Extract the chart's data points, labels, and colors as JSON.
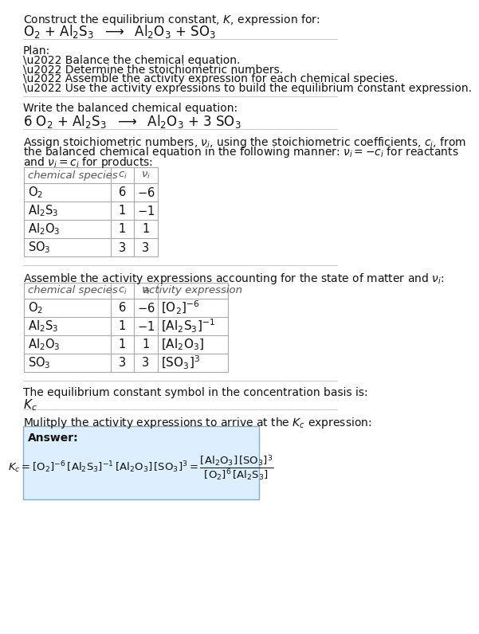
{
  "bg_color": "#ffffff",
  "table_border_color": "#aaaaaa",
  "answer_box_facecolor": "#ddeeff",
  "answer_box_edgecolor": "#88aacc",
  "text_color": "#111111",
  "gray_text": "#555555",
  "section_line_color": "#cccccc",
  "title_text": "Construct the equilibrium constant, $K$, expression for:",
  "rxn_unbalanced": "O$_2$ + Al$_2$S$_3$  $\\longrightarrow$  Al$_2$O$_3$ + SO$_3$",
  "plan_header": "Plan:",
  "plan_items": [
    "\\u2022 Balance the chemical equation.",
    "\\u2022 Determine the stoichiometric numbers.",
    "\\u2022 Assemble the activity expression for each chemical species.",
    "\\u2022 Use the activity expressions to build the equilibrium constant expression."
  ],
  "balanced_header": "Write the balanced chemical equation:",
  "rxn_balanced": "6 O$_2$ + Al$_2$S$_3$  $\\longrightarrow$  Al$_2$O$_3$ + 3 SO$_3$",
  "assign_text_lines": [
    "Assign stoichiometric numbers, $\\nu_i$, using the stoichiometric coefficients, $c_i$, from",
    "the balanced chemical equation in the following manner: $\\nu_i = -c_i$ for reactants",
    "and $\\nu_i = c_i$ for products:"
  ],
  "t1_headers": [
    "chemical species",
    "$c_i$",
    "$\\nu_i$"
  ],
  "t1_rows": [
    [
      "O$_2$",
      "6",
      "$-6$"
    ],
    [
      "Al$_2$S$_3$",
      "1",
      "$-1$"
    ],
    [
      "Al$_2$O$_3$",
      "1",
      "1"
    ],
    [
      "SO$_3$",
      "3",
      "3"
    ]
  ],
  "assemble_text": "Assemble the activity expressions accounting for the state of matter and $\\nu_i$:",
  "t2_headers": [
    "chemical species",
    "$c_i$",
    "$\\nu_i$",
    "activity expression"
  ],
  "t2_rows": [
    [
      "O$_2$",
      "6",
      "$-6$",
      "$[\\mathrm{O}_2]^{-6}$"
    ],
    [
      "Al$_2$S$_3$",
      "1",
      "$-1$",
      "$[\\mathrm{Al}_2\\mathrm{S}_3]^{-1}$"
    ],
    [
      "Al$_2$O$_3$",
      "1",
      "1",
      "$[\\mathrm{Al}_2\\mathrm{O}_3]$"
    ],
    [
      "SO$_3$",
      "3",
      "3",
      "$[\\mathrm{SO}_3]^3$"
    ]
  ],
  "kc_text": "The equilibrium constant symbol in the concentration basis is:",
  "kc_symbol": "$K_c$",
  "multiply_text": "Mulitply the activity expressions to arrive at the $K_c$ expression:",
  "answer_label": "Answer:",
  "answer_eq1": "$K_c = [\\mathrm{O}_2]^{-6}\\,[\\mathrm{Al}_2\\mathrm{S}_3]^{-1}\\,[\\mathrm{Al}_2\\mathrm{O}_3]\\,[\\mathrm{SO}_3]^3 = \\dfrac{[\\mathrm{Al}_2\\mathrm{O}_3]\\,[\\mathrm{SO}_3]^3}{[\\mathrm{O}_2]^6\\,[\\mathrm{Al}_2\\mathrm{S}_3]}$"
}
